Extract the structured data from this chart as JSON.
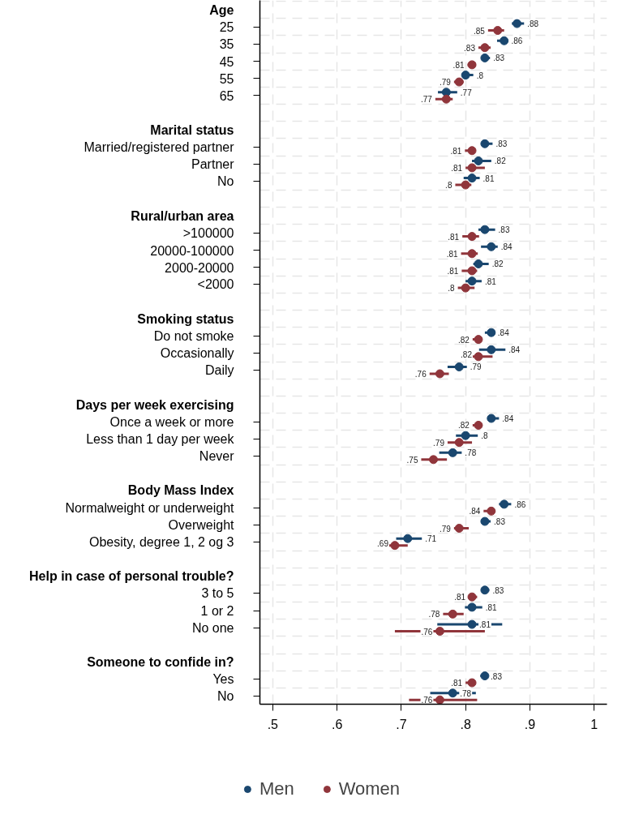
{
  "chart_data": {
    "type": "scatter",
    "orientation": "horizontal",
    "marker": "circle",
    "grid": true,
    "legend": "bottom",
    "categories": [
      "Age",
      "25",
      "35",
      "45",
      "55",
      "65",
      null,
      "Marital status",
      "Married/registered partner",
      "Partner",
      "No",
      null,
      "Rural/urban area",
      ">100000",
      "20000-100000",
      "2000-20000",
      "<2000",
      null,
      "Smoking status",
      "Do not smoke",
      "Occasionally",
      "Daily",
      null,
      "Days per week exercising",
      "Once a week or more",
      "Less than 1 day per week",
      "Never",
      null,
      "Body Mass Index",
      "Normalweight or underweight",
      "Overweight",
      "Obesity, degree 1, 2 og 3",
      null,
      "Help in case of personal trouble?",
      "3 to 5",
      "1 or 2",
      "No one",
      null,
      "Someone to confide in?",
      "Yes",
      "No"
    ],
    "xlim": [
      0.48,
      1.02
    ],
    "xticks": [
      {
        "value": 0.5,
        "label": ".5"
      },
      {
        "value": 0.6,
        "label": ".6"
      },
      {
        "value": 0.7,
        "label": ".7"
      },
      {
        "value": 0.8,
        "label": ".8"
      },
      {
        "value": 0.9,
        "label": ".9"
      },
      {
        "value": 1,
        "label": "1"
      }
    ],
    "series": [
      {
        "name": "Men",
        "color": "#1a476f",
        "values": [
          null,
          0.88,
          0.86,
          0.83,
          0.8,
          0.77,
          null,
          null,
          0.83,
          0.82,
          0.81,
          null,
          null,
          0.83,
          0.84,
          0.82,
          0.81,
          null,
          null,
          0.84,
          0.84,
          0.79,
          null,
          null,
          0.84,
          0.8,
          0.78,
          null,
          null,
          0.86,
          0.83,
          0.71,
          null,
          null,
          0.83,
          0.81,
          0.81,
          null,
          null,
          0.83,
          0.78
        ],
        "value_labels": [
          null,
          ".88",
          ".86",
          ".83",
          ".8",
          ".77",
          null,
          null,
          ".83",
          ".82",
          ".81",
          null,
          null,
          ".83",
          ".84",
          ".82",
          ".81",
          null,
          null,
          ".84",
          ".84",
          ".79",
          null,
          null,
          ".84",
          ".8",
          ".78",
          null,
          null,
          ".86",
          ".83",
          ".71",
          null,
          null,
          ".83",
          ".81",
          ".81",
          null,
          null,
          ".83",
          ".78"
        ],
        "errors": [
          null,
          [
            0.872,
            0.891
          ],
          [
            0.849,
            0.866
          ],
          [
            0.826,
            0.838
          ],
          [
            0.796,
            0.812
          ],
          [
            0.757,
            0.787
          ],
          null,
          null,
          [
            0.827,
            0.842
          ],
          [
            0.81,
            0.84
          ],
          [
            0.797,
            0.822
          ],
          null,
          null,
          [
            0.82,
            0.846
          ],
          [
            0.824,
            0.85
          ],
          [
            0.812,
            0.836
          ],
          [
            0.8,
            0.825
          ],
          null,
          null,
          [
            0.83,
            0.845
          ],
          [
            0.821,
            0.862
          ],
          [
            0.772,
            0.802
          ],
          null,
          null,
          [
            0.838,
            0.852
          ],
          [
            0.785,
            0.819
          ],
          [
            0.759,
            0.794
          ],
          null,
          null,
          [
            0.852,
            0.871
          ],
          [
            0.824,
            0.839
          ],
          [
            0.692,
            0.732
          ],
          null,
          null,
          [
            0.825,
            0.837
          ],
          [
            0.799,
            0.826
          ],
          [
            0.756,
            0.857
          ],
          null,
          null,
          [
            0.823,
            0.834
          ],
          [
            0.745,
            0.816
          ]
        ]
      },
      {
        "name": "Women",
        "color": "#90353b",
        "values": [
          null,
          0.85,
          0.83,
          0.81,
          0.79,
          0.77,
          null,
          null,
          0.81,
          0.81,
          0.8,
          null,
          null,
          0.81,
          0.81,
          0.81,
          0.8,
          null,
          null,
          0.82,
          0.82,
          0.76,
          null,
          null,
          0.82,
          0.79,
          0.75,
          null,
          null,
          0.84,
          0.79,
          0.69,
          null,
          null,
          0.81,
          0.78,
          0.76,
          null,
          null,
          0.81,
          0.76
        ],
        "value_labels": [
          null,
          ".85",
          ".83",
          ".81",
          ".79",
          ".77",
          null,
          null,
          ".81",
          ".81",
          ".8",
          null,
          null,
          ".81",
          ".81",
          ".81",
          ".8",
          null,
          null,
          ".82",
          ".82",
          ".76",
          null,
          null,
          ".82",
          ".79",
          ".75",
          null,
          null,
          ".84",
          ".79",
          ".69",
          null,
          null,
          ".81",
          ".78",
          ".76",
          null,
          null,
          ".81",
          ".76"
        ],
        "errors": [
          null,
          [
            0.835,
            0.86
          ],
          [
            0.82,
            0.839
          ],
          [
            0.803,
            0.816
          ],
          [
            0.782,
            0.797
          ],
          [
            0.753,
            0.78
          ],
          null,
          null,
          [
            0.799,
            0.814
          ],
          [
            0.8,
            0.83
          ],
          [
            0.784,
            0.809
          ],
          null,
          null,
          [
            0.795,
            0.821
          ],
          [
            0.793,
            0.819
          ],
          [
            0.794,
            0.818
          ],
          [
            0.788,
            0.814
          ],
          null,
          null,
          [
            0.811,
            0.825
          ],
          [
            0.797,
            0.842
          ],
          [
            0.744,
            0.774
          ],
          null,
          null,
          [
            0.811,
            0.825
          ],
          [
            0.772,
            0.81
          ],
          [
            0.731,
            0.771
          ],
          null,
          null,
          [
            0.828,
            0.844
          ],
          [
            0.782,
            0.805
          ],
          [
            0.665,
            0.71
          ],
          null,
          null,
          [
            0.805,
            0.818
          ],
          [
            0.765,
            0.797
          ],
          [
            0.69,
            0.83
          ],
          null,
          null,
          [
            0.8,
            0.811
          ],
          [
            0.712,
            0.818
          ]
        ]
      }
    ]
  }
}
